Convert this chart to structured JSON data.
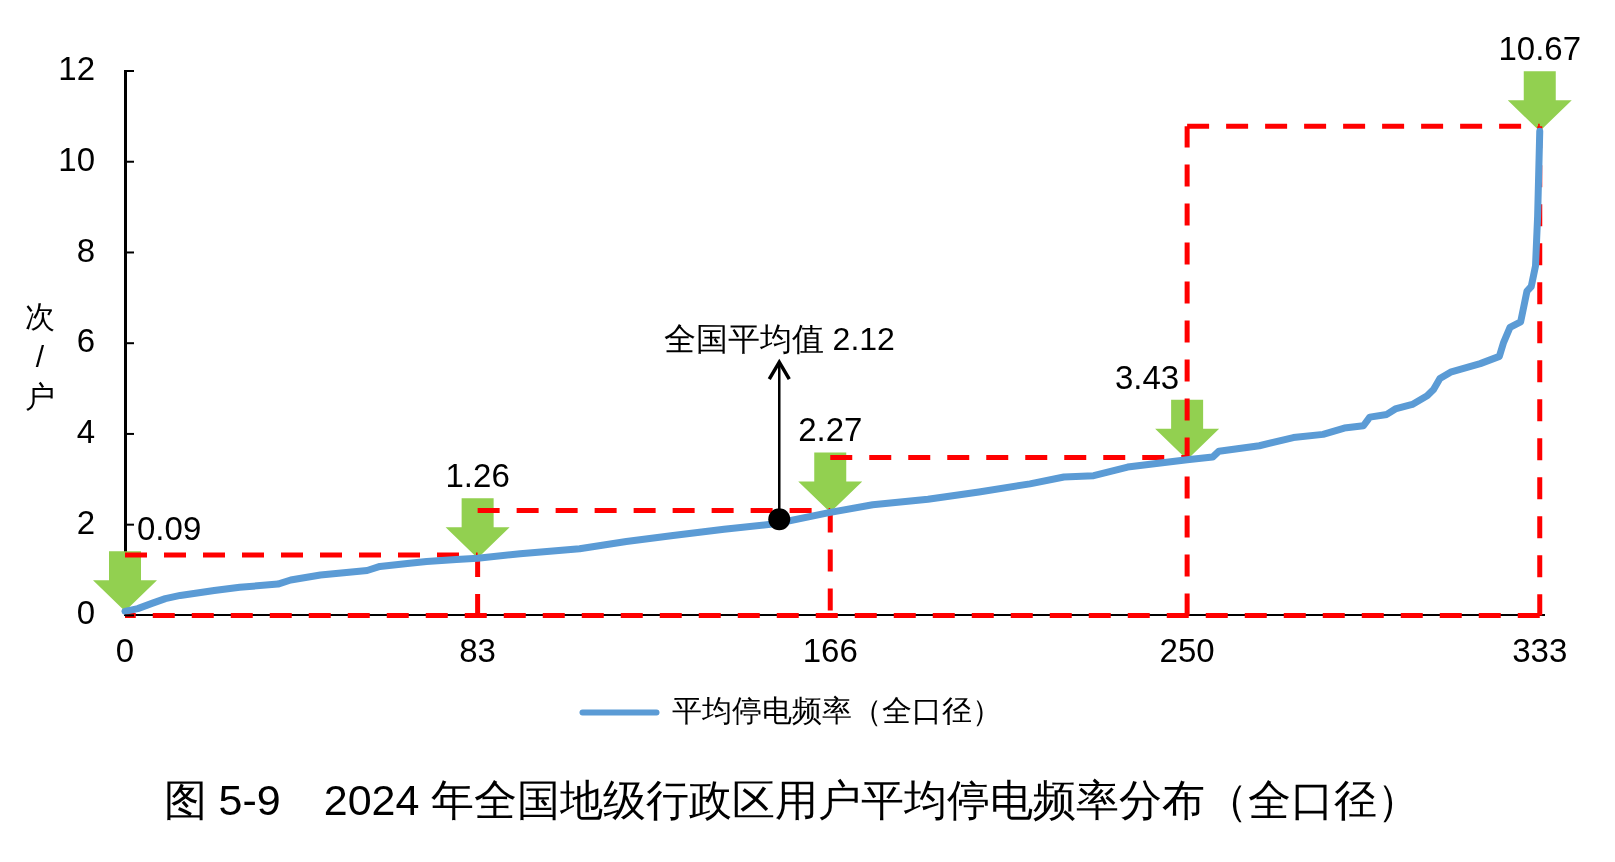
{
  "chart_data": {
    "type": "line",
    "title": "图 5-9　2024 年全国地级行政区用户平均停电频率分布（全口径）",
    "ylabel": "次/户",
    "xlim": [
      0,
      334
    ],
    "xticks": [
      0,
      83,
      166,
      250,
      333
    ],
    "ylim": [
      0,
      12
    ],
    "yticks": [
      0,
      2,
      4,
      6,
      8,
      10,
      12
    ],
    "legend": "bottom",
    "series": [
      {
        "type": "scatter",
        "color": "#000000",
        "marker": "circle",
        "x": [
          154
        ],
        "values": [
          2.12
        ]
      },
      {
        "name": "平均停电频率（全口径）",
        "type": "line",
        "color": "#5b9bd5",
        "x": [
          0,
          3,
          6.5,
          9.5,
          13,
          21,
          27,
          36,
          39,
          46,
          57,
          60,
          67,
          71,
          78,
          83,
          93,
          107,
          118,
          129,
          141,
          153,
          166,
          176,
          189,
          201,
          213,
          221,
          228,
          236,
          250,
          256,
          257.5,
          267,
          275,
          282,
          287,
          291.5,
          293,
          297,
          299,
          303,
          306.5,
          308,
          309.5,
          312,
          319,
          323.5,
          324.5,
          326,
          328.5,
          330,
          331,
          332,
          332.5,
          333
        ],
        "values": [
          0.09,
          0.15,
          0.27,
          0.37,
          0.44,
          0.55,
          0.62,
          0.69,
          0.78,
          0.89,
          0.99,
          1.08,
          1.15,
          1.19,
          1.23,
          1.26,
          1.36,
          1.47,
          1.63,
          1.76,
          1.9,
          2.02,
          2.27,
          2.44,
          2.56,
          2.72,
          2.9,
          3.05,
          3.08,
          3.27,
          3.43,
          3.49,
          3.62,
          3.74,
          3.92,
          3.99,
          4.13,
          4.18,
          4.37,
          4.43,
          4.55,
          4.65,
          4.84,
          4.98,
          5.22,
          5.36,
          5.55,
          5.71,
          6.02,
          6.35,
          6.47,
          7.15,
          7.25,
          7.7,
          8.8,
          10.67
        ]
      },
      {
        "type": "line",
        "color": "#ff0000",
        "line_style": "dashed",
        "x": [
          0,
          83,
          83
        ],
        "values": [
          1.33,
          1.33,
          0
        ]
      },
      {
        "type": "line",
        "color": "#ff0000",
        "line_style": "dashed",
        "x": [
          83,
          166,
          166
        ],
        "values": [
          2.31,
          2.31,
          0
        ]
      },
      {
        "type": "line",
        "color": "#ff0000",
        "line_style": "dashed",
        "x": [
          166,
          250
        ],
        "values": [
          3.48,
          3.48
        ]
      },
      {
        "type": "line",
        "color": "#ff0000",
        "line_style": "dashed",
        "x": [
          250,
          250,
          333,
          333,
          0
        ],
        "values": [
          0,
          10.78,
          10.78,
          0,
          0
        ]
      }
    ],
    "annotations": [
      {
        "text": "0.09",
        "x": 0,
        "y": 0.09
      },
      {
        "text": "1.26",
        "x": 83,
        "y": 1.26
      },
      {
        "text": "2.27",
        "x": 166,
        "y": 2.27
      },
      {
        "text": "3.43",
        "x": 250,
        "y": 3.43
      },
      {
        "text": "10.67",
        "x": 333,
        "y": 10.67
      },
      {
        "text": "全国平均值 2.12",
        "x": 154,
        "y": 2.12
      }
    ]
  }
}
